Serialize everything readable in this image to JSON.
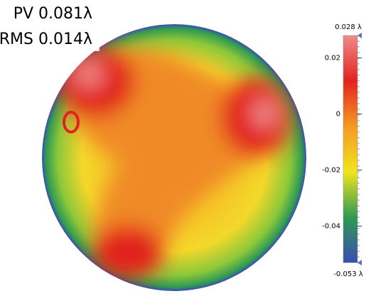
{
  "chart_data": {
    "type": "surface-map",
    "annotations": [
      "PV 0.081λ",
      "RMS 0.014λ"
    ],
    "colorbar": {
      "clim": [
        -0.053,
        0.028
      ],
      "ticks": [
        {
          "value": 0.028,
          "label": "0.028 λ"
        },
        0.02,
        0,
        -0.02,
        -0.04,
        {
          "value": -0.053,
          "label": "-0.053 λ"
        }
      ],
      "colors": [
        "#3b4cb4",
        "#2f9a52",
        "#f2e41e",
        "#f59a22",
        "#e2231e",
        "#f08a8a"
      ]
    }
  }
}
